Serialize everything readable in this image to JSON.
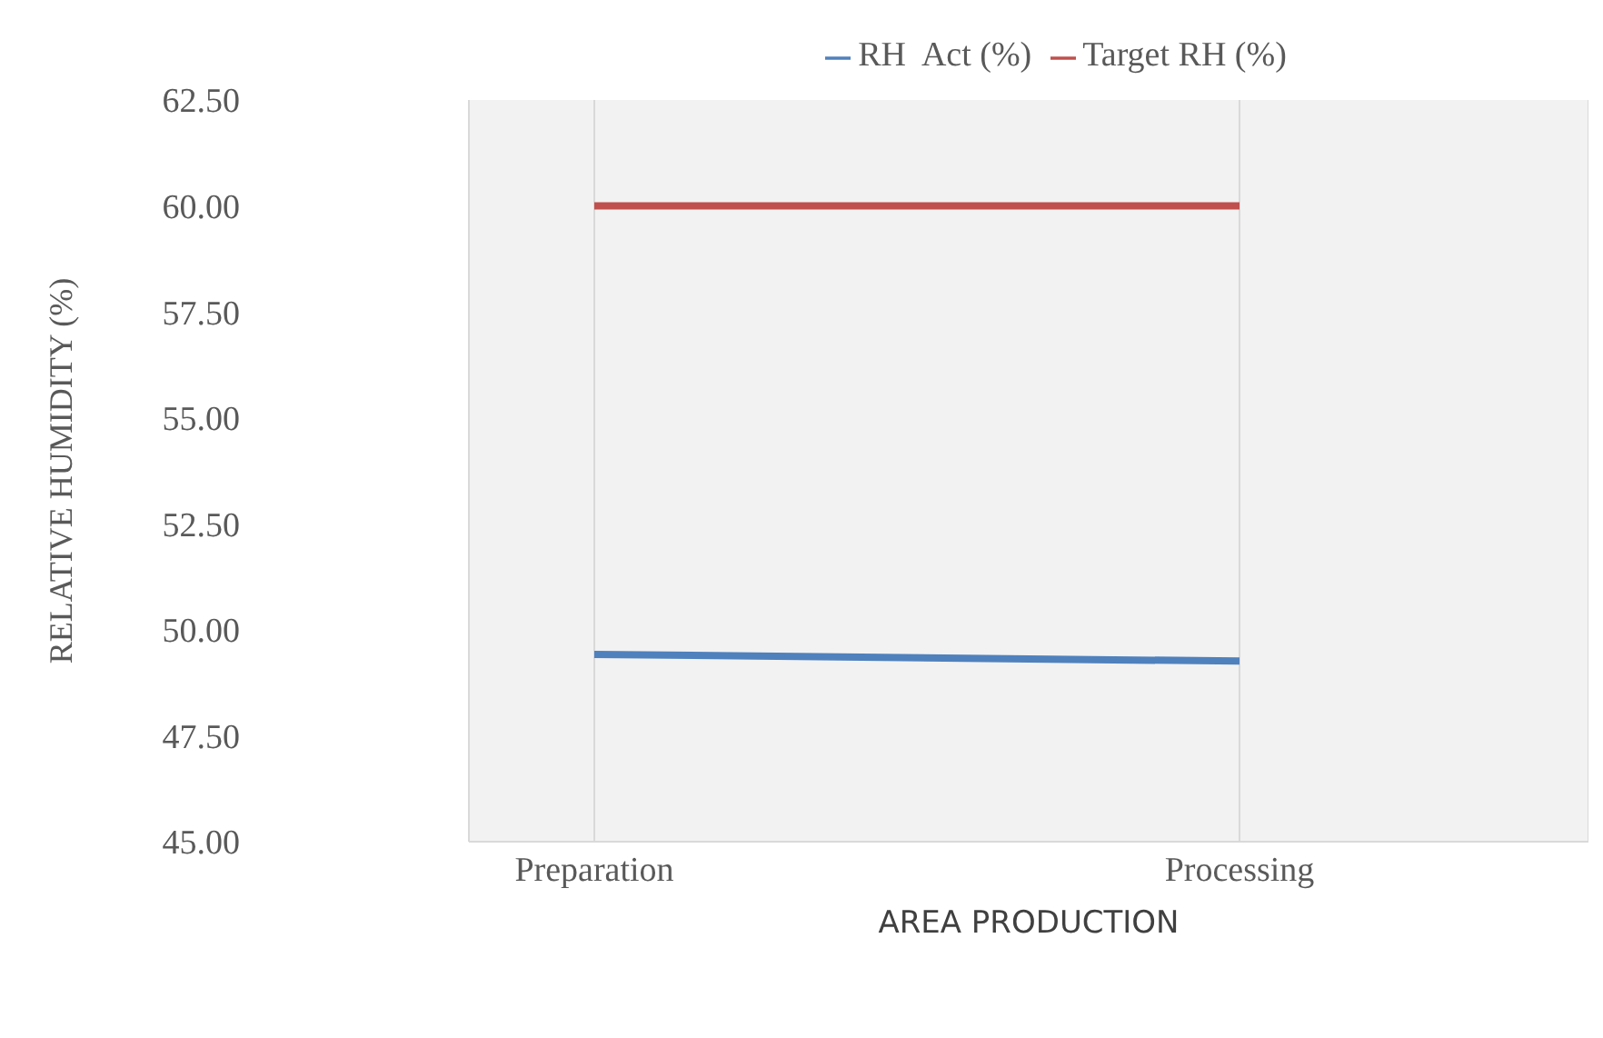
{
  "chart_data": {
    "type": "line",
    "xlabel": "AREA PRODUCTION",
    "ylabel": "RELATIVE HUMIDITY (%)",
    "categories": [
      "Preparation",
      "Processing"
    ],
    "series": [
      {
        "name": "RH  Act (%)",
        "color": "#4f81bd",
        "values": [
          49.42,
          49.26
        ]
      },
      {
        "name": "Target RH (%)",
        "color": "#c0504d",
        "values": [
          60,
          60
        ]
      }
    ],
    "ylim": [
      45,
      62.5
    ],
    "yticks": [
      {
        "value": 45,
        "label": "45.00"
      },
      {
        "value": 47.5,
        "label": "47.50"
      },
      {
        "value": 50,
        "label": "50.00"
      },
      {
        "value": 52.5,
        "label": "52.50"
      },
      {
        "value": 55,
        "label": "55.00"
      },
      {
        "value": 57.5,
        "label": "57.50"
      },
      {
        "value": 60,
        "label": "60.00"
      },
      {
        "value": 62.5,
        "label": "62.50"
      }
    ],
    "grid": "x",
    "legend": "top",
    "marker": "none",
    "line_style": "solid"
  }
}
